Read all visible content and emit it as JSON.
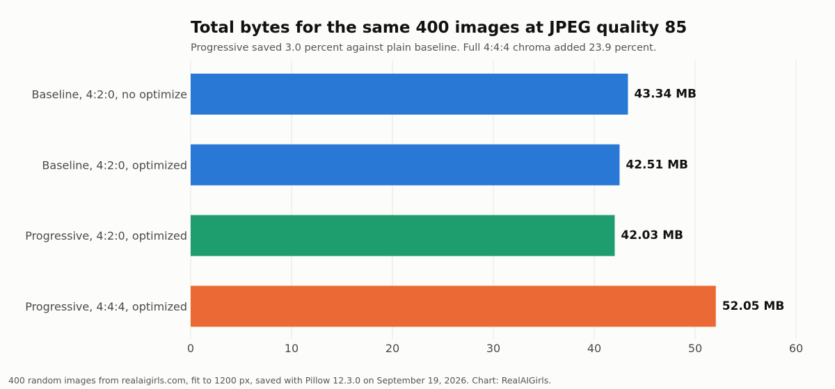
{
  "chart_data": {
    "type": "bar",
    "orientation": "horizontal",
    "title": "Total bytes for the same 400 images at JPEG quality 85",
    "subtitle": "Progressive saved 3.0 percent against plain baseline. Full 4:4:4 chroma added 23.9 percent.",
    "categories": [
      "Baseline, 4:2:0, no optimize",
      "Baseline, 4:2:0, optimized",
      "Progressive, 4:2:0, optimized",
      "Progressive, 4:4:4, optimized"
    ],
    "values": [
      43.34,
      42.51,
      42.03,
      52.05
    ],
    "data_labels": [
      "43.34 MB",
      "42.51 MB",
      "42.03 MB",
      "52.05 MB"
    ],
    "colors": [
      "#2a78d6",
      "#2a78d6",
      "#1e9e6e",
      "#eb6935"
    ],
    "xlim": [
      0,
      60
    ],
    "x_ticks": [
      0,
      10,
      20,
      30,
      40,
      50,
      60
    ],
    "xlabel": "",
    "ylabel": "",
    "grid": true,
    "legend": "none"
  },
  "footer": {
    "note": "400 random images from realaigirls.com, fit to 1200 px, saved with Pillow 12.3.0 on September 19, 2026. Chart: RealAIGirls."
  }
}
